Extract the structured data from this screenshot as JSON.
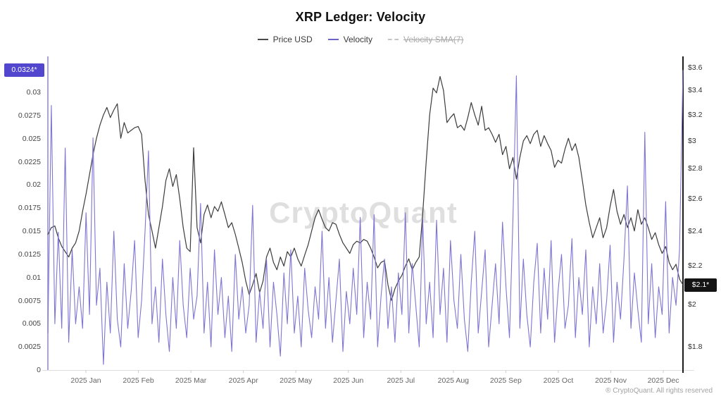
{
  "title": "XRP Ledger: Velocity",
  "watermark": "CryptoQuant",
  "footer": "® CryptoQuant. All rights reserved",
  "legend": [
    {
      "label": "Price USD",
      "color": "#4a4a4a",
      "disabled": false
    },
    {
      "label": "Velocity",
      "color": "#6e63cc",
      "disabled": false
    },
    {
      "label": "Velocity SMA(7)",
      "color": "#c3c3c3",
      "disabled": true
    }
  ],
  "left_axis": {
    "badge": "0.0324*",
    "badge_value": 0.0324,
    "badge_color": "#5246cf",
    "tick_labels": [
      "0.03",
      "0.0275",
      "0.025",
      "0.0225",
      "0.02",
      "0.0175",
      "0.015",
      "0.0125",
      "0.01",
      "0.0075",
      "0.005",
      "0.0025",
      "0"
    ],
    "tick_values": [
      0.03,
      0.0275,
      0.025,
      0.0225,
      0.02,
      0.0175,
      0.015,
      0.0125,
      0.01,
      0.0075,
      0.005,
      0.0025,
      0
    ]
  },
  "right_axis": {
    "badge": "$2.1*",
    "badge_value": 2.1,
    "badge_color": "#141414",
    "tick_labels": [
      "$3.6",
      "$3.4",
      "$3.2",
      "$3",
      "$2.8",
      "$2.6",
      "$2.4",
      "$2.2",
      "$2",
      "$1.8"
    ],
    "tick_values": [
      3.6,
      3.4,
      3.2,
      3.0,
      2.8,
      2.6,
      2.4,
      2.2,
      2.0,
      1.8
    ]
  },
  "x_axis": {
    "tick_labels": [
      "2025 Jan",
      "2025 Feb",
      "2025 Mar",
      "2025 Apr",
      "2025 May",
      "2025 Jun",
      "2025 Jul",
      "2025 Aug",
      "2025 Sep",
      "2025 Oct",
      "2025 Nov",
      "2025 Dec"
    ]
  },
  "chart_data": {
    "type": "line",
    "x_range": "Dec 2024 - Dec 2025, daily points",
    "grid": false,
    "legend_position": "top",
    "left_axis_label": "Velocity",
    "right_axis_label": "Price USD",
    "left_ylim": [
      0,
      0.0339
    ],
    "right_ylim": [
      1.7,
      3.7
    ],
    "right_scale": "log",
    "series": [
      {
        "name": "Price USD",
        "axis": "right",
        "color": "#3c3c3c",
        "last_value": 2.1,
        "values": [
          2.38,
          2.42,
          2.43,
          2.36,
          2.31,
          2.28,
          2.25,
          2.3,
          2.33,
          2.4,
          2.52,
          2.63,
          2.76,
          2.9,
          3.02,
          3.12,
          3.2,
          3.26,
          3.18,
          3.24,
          3.29,
          3.02,
          3.14,
          3.06,
          3.08,
          3.1,
          3.11,
          3.05,
          2.72,
          2.5,
          2.4,
          2.3,
          2.42,
          2.55,
          2.72,
          2.8,
          2.68,
          2.76,
          2.6,
          2.42,
          2.3,
          2.28,
          2.95,
          2.42,
          2.33,
          2.5,
          2.56,
          2.48,
          2.55,
          2.52,
          2.58,
          2.5,
          2.42,
          2.45,
          2.38,
          2.3,
          2.22,
          2.12,
          2.05,
          2.1,
          2.16,
          2.06,
          2.12,
          2.25,
          2.3,
          2.22,
          2.18,
          2.25,
          2.2,
          2.28,
          2.25,
          2.3,
          2.24,
          2.2,
          2.26,
          2.32,
          2.4,
          2.48,
          2.53,
          2.47,
          2.42,
          2.4,
          2.45,
          2.44,
          2.38,
          2.33,
          2.3,
          2.27,
          2.32,
          2.34,
          2.33,
          2.35,
          2.34,
          2.3,
          2.25,
          2.19,
          2.22,
          2.23,
          2.1,
          2.02,
          2.08,
          2.12,
          2.15,
          2.2,
          2.24,
          2.18,
          2.22,
          2.25,
          2.5,
          2.85,
          3.2,
          3.42,
          3.38,
          3.52,
          3.4,
          3.14,
          3.18,
          3.21,
          3.1,
          3.12,
          3.08,
          3.18,
          3.3,
          3.2,
          3.12,
          3.27,
          3.08,
          3.1,
          3.05,
          2.99,
          3.05,
          2.9,
          2.96,
          2.8,
          2.88,
          2.73,
          2.88,
          3.0,
          3.04,
          2.98,
          3.05,
          3.08,
          2.96,
          3.04,
          2.98,
          2.93,
          2.81,
          2.86,
          2.84,
          2.94,
          3.02,
          2.93,
          2.98,
          2.88,
          2.72,
          2.56,
          2.45,
          2.36,
          2.42,
          2.48,
          2.36,
          2.42,
          2.55,
          2.66,
          2.52,
          2.44,
          2.5,
          2.42,
          2.48,
          2.4,
          2.53,
          2.44,
          2.48,
          2.42,
          2.35,
          2.39,
          2.32,
          2.27,
          2.31,
          2.22,
          2.18,
          2.21,
          2.13,
          2.1
        ]
      },
      {
        "name": "Velocity",
        "axis": "left",
        "color": "#7e74d2",
        "last_value": 0.0324,
        "values": [
          0.004,
          0.0286,
          0.005,
          0.0149,
          0.0045,
          0.024,
          0.003,
          0.013,
          0.005,
          0.009,
          0.0045,
          0.017,
          0.006,
          0.0251,
          0.007,
          0.011,
          0.0006,
          0.0095,
          0.004,
          0.015,
          0.0055,
          0.0025,
          0.0115,
          0.0045,
          0.0085,
          0.014,
          0.0035,
          0.0075,
          0.015,
          0.0237,
          0.005,
          0.009,
          0.003,
          0.012,
          0.006,
          0.002,
          0.01,
          0.0045,
          0.014,
          0.007,
          0.0035,
          0.011,
          0.0055,
          0.008,
          0.018,
          0.004,
          0.0095,
          0.0025,
          0.013,
          0.006,
          0.01,
          0.0035,
          0.008,
          0.002,
          0.0125,
          0.0055,
          0.009,
          0.004,
          0.007,
          0.0178,
          0.003,
          0.0085,
          0.0045,
          0.012,
          0.0025,
          0.0095,
          0.006,
          0.0015,
          0.0105,
          0.005,
          0.013,
          0.004,
          0.008,
          0.0025,
          0.011,
          0.0065,
          0.0035,
          0.009,
          0.0055,
          0.015,
          0.0045,
          0.01,
          0.003,
          0.0075,
          0.012,
          0.002,
          0.0085,
          0.005,
          0.011,
          0.006,
          0.0165,
          0.0035,
          0.0095,
          0.0055,
          0.0168,
          0.0025,
          0.008,
          0.012,
          0.0045,
          0.009,
          0.003,
          0.0105,
          0.006,
          0.017,
          0.004,
          0.0115,
          0.007,
          0.0025,
          0.0163,
          0.005,
          0.0095,
          0.0035,
          0.0162,
          0.006,
          0.011,
          0.003,
          0.014,
          0.0075,
          0.0045,
          0.0125,
          0.0055,
          0.002,
          0.0095,
          0.015,
          0.004,
          0.0085,
          0.013,
          0.0025,
          0.007,
          0.0115,
          0.005,
          0.016,
          0.009,
          0.0035,
          0.0164,
          0.0318,
          0.0045,
          0.012,
          0.006,
          0.0025,
          0.0095,
          0.0137,
          0.004,
          0.011,
          0.0055,
          0.014,
          0.003,
          0.0085,
          0.0125,
          0.0045,
          0.007,
          0.0142,
          0.0035,
          0.01,
          0.006,
          0.013,
          0.0025,
          0.009,
          0.005,
          0.0115,
          0.004,
          0.0075,
          0.0135,
          0.003,
          0.0095,
          0.0055,
          0.012,
          0.0199,
          0.0045,
          0.0105,
          0.0065,
          0.003,
          0.0257,
          0.005,
          0.0115,
          0.0035,
          0.009,
          0.006,
          0.0182,
          0.004,
          0.01,
          0.007,
          0.013,
          0.0324
        ]
      },
      {
        "name": "Velocity SMA(7)",
        "axis": "left",
        "color": "#c3c3c3",
        "hidden": true,
        "values": []
      }
    ]
  }
}
